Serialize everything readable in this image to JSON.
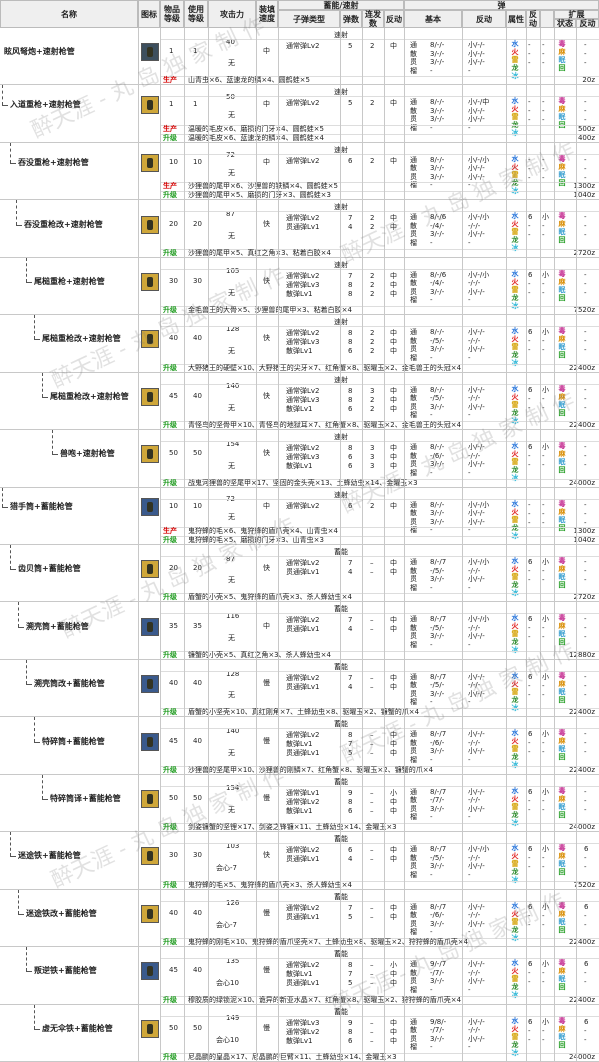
{
  "header": {
    "name": "名称",
    "icon": "图标",
    "item_level": "物品等级",
    "use_level": "使用等级",
    "attack": "攻击力",
    "reload": "装填速度",
    "ammo_group": "蓄能/速射",
    "bullet_type": "子弹类型",
    "ammo_count": "弹数",
    "rapid_count": "连发数",
    "recoil": "反动",
    "shot": "弹",
    "basic": "基本",
    "recoil2": "反动",
    "attr": "属性",
    "recoil3": "反动",
    "ext": "扩展",
    "status": "状态",
    "recoil4": "反动"
  },
  "labels": {
    "produce": "生产",
    "upgrade": "升级",
    "rapid": "速射",
    "charge": "蓄能"
  },
  "basic_types": [
    "通",
    "散",
    "贯",
    "榴"
  ],
  "elements": [
    "水",
    "火",
    "雷",
    "龙",
    "冰"
  ],
  "status_types": [
    "毒",
    "麻",
    "眠",
    "回"
  ],
  "watermarks": [
    "醉天涯 - 丸 岛 独 家 制 作",
    "醉天涯 - 丸 岛 独 家 制 作",
    "醉天涯 - 丸 岛 独 家 制 作",
    "醉天涯 - 丸 岛 独 家 制 作",
    "醉天涯 - 丸 岛 独 家 制 作",
    "醉天涯 - 丸 岛 独 家 制 作",
    "醉天涯 - 丸 岛 独 家 制 作",
    "醉天涯 - 丸 岛 独 家 制 作"
  ],
  "rows": [
    {
      "name": "眩风弩炮+速射枪管",
      "ilv": "1",
      "ulv": "1",
      "atk": "40",
      "aff": "无",
      "reload": "中",
      "mode": "速射",
      "icon": "dark",
      "bullets": [
        {
          "t": "通常弹Lv2",
          "n": "5",
          "r": "2",
          "k": "中"
        }
      ],
      "basic": [
        "8/-/-",
        "3/-/-",
        "3/-/-",
        "-"
      ],
      "rec": [
        "小/-/-",
        "小/-/-",
        "小/-/-",
        "-"
      ],
      "elem": [
        "-",
        "-",
        "-"
      ],
      "elec": [
        "-",
        "-",
        "-"
      ],
      "st": [
        "-",
        "-",
        "-"
      ],
      "lines": [
        {
          "k": "produce",
          "text": "山青虫×6、蓝速龙的鳞×4、圆鹤蛙×5",
          "cost": "20z"
        }
      ]
    },
    {
      "name": "入道重枪+速射枪管",
      "ilv": "1",
      "ulv": "1",
      "atk": "50",
      "aff": "无",
      "reload": "中",
      "mode": "速射",
      "icon": "gold",
      "bullets": [
        {
          "t": "通常弹Lv2",
          "n": "5",
          "r": "2",
          "k": "中"
        }
      ],
      "basic": [
        "8/-/-",
        "3/-/-",
        "3/-/-",
        "-"
      ],
      "rec": [
        "小/-/中",
        "小/-/-",
        "小/-/-",
        "-"
      ],
      "elem": [
        "-",
        "-",
        "-"
      ],
      "elec": [
        "-",
        "-",
        "-"
      ],
      "st": [
        "-",
        "-",
        "-"
      ],
      "lines": [
        {
          "k": "produce",
          "text": "温暖的毛皮×6、磨损的门牙×4、圆鹤蛙×5",
          "cost": "500z"
        },
        {
          "k": "upgrade",
          "text": "温暖的毛皮×6、蓝速龙的鳞×4、圆鹤蛙×4",
          "cost": "400z"
        }
      ]
    },
    {
      "name": "吞没重枪+速射枪管",
      "ilv": "10",
      "ulv": "10",
      "atk": "72",
      "aff": "无",
      "reload": "中",
      "mode": "速射",
      "icon": "gold",
      "bullets": [
        {
          "t": "通常弹Lv2",
          "n": "6",
          "r": "2",
          "k": "中"
        }
      ],
      "basic": [
        "8/-/-",
        "3/-/-",
        "3/-/-",
        "-"
      ],
      "rec": [
        "小/-/小",
        "小/-/-",
        "小/-/-",
        "-"
      ],
      "elem": [
        "-",
        "-",
        "-"
      ],
      "elec": [
        "-",
        "-",
        "-"
      ],
      "st": [
        "-",
        "-",
        "-"
      ],
      "lines": [
        {
          "k": "produce",
          "text": "沙狸兽的尾甲×6、沙狸兽的铁鳞×4、圆鹤蛙×5",
          "cost": "1300z"
        },
        {
          "k": "upgrade",
          "text": "沙狸兽的尾甲×5、磨损的门牙×3、圆鹤蛙×3",
          "cost": "1040z"
        }
      ]
    },
    {
      "name": "吞没重枪改+速射枪管",
      "ilv": "20",
      "ulv": "20",
      "atk": "87",
      "aff": "无",
      "reload": "快",
      "mode": "速射",
      "icon": "gold",
      "bullets": [
        {
          "t": "通常弹Lv2",
          "n": "7",
          "r": "2",
          "k": "中"
        },
        {
          "t": "贯通弹Lv1",
          "n": "4",
          "r": "2",
          "k": "中"
        }
      ],
      "basic": [
        "8/-/6",
        "-/4/-",
        "3/-/-",
        "-"
      ],
      "rec": [
        "小/-/小",
        "-/-/-",
        "小/-/-",
        "-"
      ],
      "elem": [
        "6",
        "-",
        "-"
      ],
      "elec": [
        "小",
        "-",
        "-"
      ],
      "st": [
        "-",
        "-",
        "-"
      ],
      "lines": [
        {
          "k": "upgrade",
          "text": "沙狸兽的尾甲×5、真红之角×3、粘着白胶×4",
          "cost": "2720z"
        }
      ]
    },
    {
      "name": "尾槌重枪+速射枪管",
      "ilv": "30",
      "ulv": "30",
      "atk": "105",
      "aff": "无",
      "reload": "快",
      "mode": "速射",
      "icon": "gold",
      "bullets": [
        {
          "t": "通常弹Lv2",
          "n": "7",
          "r": "2",
          "k": "中"
        },
        {
          "t": "通常弹Lv3",
          "n": "8",
          "r": "2",
          "k": "中"
        },
        {
          "t": "散弹Lv1",
          "n": "8",
          "r": "2",
          "k": "中"
        }
      ],
      "basic": [
        "8/-/6",
        "-/4/-",
        "3/-/-",
        "-"
      ],
      "rec": [
        "小/-/小",
        "-/-/-",
        "小/-/-",
        "-"
      ],
      "elem": [
        "6",
        "-",
        "-"
      ],
      "elec": [
        "小",
        "-",
        "-"
      ],
      "st": [
        "-",
        "-",
        "-"
      ],
      "lines": [
        {
          "k": "upgrade",
          "text": "金毛兽王的大骨×5、沙狸兽的尾甲×3、粘着白胶×4",
          "cost": "7520z"
        }
      ]
    },
    {
      "name": "尾槌重枪改+速射枪管",
      "ilv": "40",
      "ulv": "40",
      "atk": "128",
      "aff": "无",
      "reload": "快",
      "mode": "速射",
      "icon": "gold",
      "bullets": [
        {
          "t": "通常弹Lv2",
          "n": "8",
          "r": "2",
          "k": "中"
        },
        {
          "t": "通常弹Lv3",
          "n": "8",
          "r": "2",
          "k": "中"
        },
        {
          "t": "散弹Lv1",
          "n": "6",
          "r": "2",
          "k": "中"
        }
      ],
      "basic": [
        "8/-/-",
        "-/5/-",
        "3/-/-",
        "-"
      ],
      "rec": [
        "小/-/-",
        "-/-/-",
        "小/-/-",
        "-"
      ],
      "elem": [
        "6",
        "-",
        "-"
      ],
      "elec": [
        "小",
        "-",
        "-"
      ],
      "st": [
        "-",
        "-",
        "-"
      ],
      "lines": [
        {
          "k": "upgrade",
          "text": "大野猪王的硬壁×10、大野猪王的尖牙×7、红角蟹×8、驱曜玉×2、金毛兽王的头冠×4",
          "cost": "22400z"
        }
      ]
    },
    {
      "name": "尾槌重枪改+速射枪管",
      "ilv": "45",
      "ulv": "40",
      "atk": "140",
      "aff": "无",
      "reload": "快",
      "mode": "速射",
      "icon": "gold",
      "bullets": [
        {
          "t": "通常弹Lv2",
          "n": "8",
          "r": "3",
          "k": "中"
        },
        {
          "t": "通常弹Lv3",
          "n": "8",
          "r": "2",
          "k": "中"
        },
        {
          "t": "散弹Lv1",
          "n": "6",
          "r": "2",
          "k": "中"
        }
      ],
      "basic": [
        "8/-/-",
        "-/5/-",
        "3/-/-",
        "-"
      ],
      "rec": [
        "小/-/-",
        "-/-/-",
        "小/-/-",
        "-"
      ],
      "elem": [
        "6",
        "-",
        "-"
      ],
      "elec": [
        "小",
        "-",
        "-"
      ],
      "st": [
        "-",
        "-",
        "-"
      ],
      "lines": [
        {
          "k": "upgrade",
          "text": "青怪鸟的坚骨甲×10、青怪鸟的地狱耳×7、红角蟹×8、驱曜玉×2、金毛兽王的头冠×4",
          "cost": "22400z"
        }
      ]
    },
    {
      "name": "兽咆+速射枪管",
      "ilv": "50",
      "ulv": "50",
      "atk": "154",
      "aff": "无",
      "reload": "快",
      "mode": "速射",
      "icon": "gold",
      "bullets": [
        {
          "t": "通常弹Lv2",
          "n": "8",
          "r": "3",
          "k": "中"
        },
        {
          "t": "通常弹Lv3",
          "n": "6",
          "r": "3",
          "k": "中"
        },
        {
          "t": "散弹Lv1",
          "n": "6",
          "r": "3",
          "k": "中"
        }
      ],
      "basic": [
        "8/-/-",
        "-/6/-",
        "3/-/-",
        "-"
      ],
      "rec": [
        "小/-/-",
        "-/-/-",
        "小/-/-",
        "-"
      ],
      "elem": [
        "6",
        "-",
        "-"
      ],
      "elec": [
        "小",
        "-",
        "-"
      ],
      "st": [
        "-",
        "-",
        "-"
      ],
      "lines": [
        {
          "k": "upgrade",
          "text": "战鬼河狸兽的坚尾甲×17、坚固的金头壳×13、土蜂幼虫×14、金曜玉×3",
          "cost": "24000z"
        }
      ]
    },
    {
      "name": "猎手筒+蓄能枪管",
      "ilv": "10",
      "ulv": "10",
      "atk": "72",
      "aff": "无",
      "reload": "中",
      "mode": "速射",
      "icon": "blue",
      "bullets": [
        {
          "t": "通常弹Lv2",
          "n": "6",
          "r": "2",
          "k": "中"
        }
      ],
      "basic": [
        "8/-/-",
        "3/-/-",
        "3/-/-",
        "-"
      ],
      "rec": [
        "小/-/小",
        "小/-/-",
        "小/-/-",
        "-"
      ],
      "elem": [
        "-",
        "-",
        "-"
      ],
      "elec": [
        "-",
        "-",
        "-"
      ],
      "st": [
        "-",
        "-",
        "-"
      ],
      "lines": [
        {
          "k": "produce",
          "text": "鬼狩蜂的毛×6、鬼狩蜂的盾爪壳×4、山青虫×4",
          "cost": "1300z"
        },
        {
          "k": "upgrade",
          "text": "鬼狩蜂的毛×5、磨损的门牙×3、山青虫×3",
          "cost": "1040z"
        }
      ]
    },
    {
      "name": "齿贝筒+蓄能枪管",
      "ilv": "20",
      "ulv": "20",
      "atk": "87",
      "aff": "无",
      "reload": "快",
      "mode": "蓄能",
      "icon": "gold",
      "bullets": [
        {
          "t": "通常弹Lv2",
          "n": "7",
          "r": "–",
          "k": "中"
        },
        {
          "t": "贯通弹Lv1",
          "n": "4",
          "r": "–",
          "k": "中"
        }
      ],
      "basic": [
        "8/-/7",
        "-/5/-",
        "3/-/-",
        "-"
      ],
      "rec": [
        "小/-/小",
        "-/-/-",
        "小/-/-",
        "-"
      ],
      "elem": [
        "6",
        "-",
        "-"
      ],
      "elec": [
        "小",
        "-",
        "-"
      ],
      "st": [
        "-",
        "-",
        "-"
      ],
      "lines": [
        {
          "k": "upgrade",
          "text": "盾蟹的小壳×5、鬼狩蜂的盾爪壳×3、杀人蜂幼虫×4",
          "cost": "2720z"
        }
      ]
    },
    {
      "name": "溯壳筒+蓄能枪管",
      "ilv": "35",
      "ulv": "35",
      "atk": "116",
      "aff": "无",
      "reload": "中",
      "mode": "蓄能",
      "icon": "blue",
      "bullets": [
        {
          "t": "通常弹Lv2",
          "n": "7",
          "r": "–",
          "k": "中"
        },
        {
          "t": "贯通弹Lv1",
          "n": "4",
          "r": "–",
          "k": "中"
        }
      ],
      "basic": [
        "8/-/7",
        "-/5/-",
        "3/-/-",
        "-"
      ],
      "rec": [
        "小/-/小",
        "-/-/-",
        "小/-/-",
        "-"
      ],
      "elem": [
        "6",
        "-",
        "-"
      ],
      "elec": [
        "小",
        "-",
        "-"
      ],
      "st": [
        "-",
        "-",
        "-"
      ],
      "lines": [
        {
          "k": "upgrade",
          "text": "镰蟹的小壳×5、真红之角×3、杀人蜂幼虫×4",
          "cost": "12880z"
        }
      ]
    },
    {
      "name": "溯壳筒改+蓄能枪管",
      "ilv": "40",
      "ulv": "40",
      "atk": "128",
      "aff": "无",
      "reload": "慢",
      "mode": "蓄能",
      "icon": "blue",
      "bullets": [
        {
          "t": "通常弹Lv2",
          "n": "7",
          "r": "–",
          "k": "中"
        },
        {
          "t": "贯通弹Lv1",
          "n": "4",
          "r": "–",
          "k": "中"
        }
      ],
      "basic": [
        "8/-/7",
        "-/5/-",
        "3/-/-",
        "-"
      ],
      "rec": [
        "小/-/-",
        "-/-/-",
        "小/-/-",
        "-"
      ],
      "elem": [
        "6",
        "-",
        "-"
      ],
      "elec": [
        "小",
        "-",
        "-"
      ],
      "st": [
        "-",
        "-",
        "-"
      ],
      "lines": [
        {
          "k": "upgrade",
          "text": "盾蟹的小坚壳×10、真红刚角×7、土蜂幼虫×8、驱曜玉×2、镰蟹的爪×4",
          "cost": "22400z"
        }
      ]
    },
    {
      "name": "特碎筒+蓄能枪管",
      "ilv": "45",
      "ulv": "40",
      "atk": "140",
      "aff": "无",
      "reload": "慢",
      "mode": "蓄能",
      "icon": "blue",
      "bullets": [
        {
          "t": "通常弹Lv2",
          "n": "8",
          "r": "–",
          "k": "中"
        },
        {
          "t": "散弹Lv1",
          "n": "7",
          "r": "–",
          "k": "中"
        },
        {
          "t": "贯通弹Lv1",
          "n": "5",
          "r": "–",
          "k": "中"
        }
      ],
      "basic": [
        "8/-/7",
        "-/6/-",
        "3/-/-",
        "-"
      ],
      "rec": [
        "小/-/-",
        "-/-/-",
        "小/-/-",
        "-"
      ],
      "elem": [
        "6",
        "-",
        "-"
      ],
      "elec": [
        "小",
        "-",
        "-"
      ],
      "st": [
        "-",
        "-",
        "-"
      ],
      "lines": [
        {
          "k": "upgrade",
          "text": "沙狸兽的坚尾甲×10、沙狸兽的刚鳞×7、红角蟹×8、驱曜玉×2、镰蟹的爪×4",
          "cost": "22400z"
        }
      ]
    },
    {
      "name": "特碎筒译+蓄能枪管",
      "ilv": "50",
      "ulv": "50",
      "atk": "154",
      "aff": "无",
      "reload": "慢",
      "mode": "蓄能",
      "icon": "gold",
      "bullets": [
        {
          "t": "通常弹Lv1",
          "n": "9",
          "r": "–",
          "k": "小"
        },
        {
          "t": "通常弹Lv2",
          "n": "8",
          "r": "–",
          "k": "中"
        },
        {
          "t": "散弹Lv1",
          "n": "6",
          "r": "–",
          "k": "中"
        }
      ],
      "basic": [
        "8/-/7",
        "-/7/-",
        "3/-/-",
        "-"
      ],
      "rec": [
        "小/-/-",
        "-/-/-",
        "小/-/-",
        "-"
      ],
      "elem": [
        "6",
        "-",
        "-"
      ],
      "elec": [
        "小",
        "-",
        "-"
      ],
      "st": [
        "-",
        "-",
        "-"
      ],
      "lines": [
        {
          "k": "upgrade",
          "text": "剑姿镰蟹的坚锂×17、剑姿之锋镰×11、土蜂幼虫×14、金曜玉×3",
          "cost": "24000z"
        }
      ]
    },
    {
      "name": "迷途铁+蓄能枪管",
      "ilv": "30",
      "ulv": "30",
      "atk": "103",
      "aff": "会心-7",
      "reload": "快",
      "mode": "蓄能",
      "icon": "gold",
      "bullets": [
        {
          "t": "通常弹Lv2",
          "n": "6",
          "r": "–",
          "k": "中"
        },
        {
          "t": "贯通弹Lv1",
          "n": "4",
          "r": "–",
          "k": "中"
        }
      ],
      "basic": [
        "8/-/7",
        "-/5/-",
        "3/-/-",
        "-"
      ],
      "rec": [
        "小/-/小",
        "-/-/-",
        "小/-/-",
        "-"
      ],
      "elem": [
        "6",
        "-",
        "-"
      ],
      "elec": [
        "小",
        "-",
        "-"
      ],
      "st": [
        "6",
        "-",
        "-"
      ],
      "lines": [
        {
          "k": "upgrade",
          "text": "鬼狩蜂的毛×5、鬼狩蜂的盾爪壳×3、杀人蜂幼虫×4",
          "cost": "7520z"
        }
      ]
    },
    {
      "name": "迷途铁改+蓄能枪管",
      "ilv": "40",
      "ulv": "40",
      "atk": "126",
      "aff": "会心-7",
      "reload": "慢",
      "mode": "蓄能",
      "icon": "gold",
      "bullets": [
        {
          "t": "通常弹Lv2",
          "n": "7",
          "r": "–",
          "k": "中"
        },
        {
          "t": "贯通弹Lv1",
          "n": "5",
          "r": "–",
          "k": "中"
        }
      ],
      "basic": [
        "8/-/7",
        "-/6/-",
        "3/-/-",
        "-"
      ],
      "rec": [
        "小/-/-",
        "-/-/-",
        "小/-/-",
        "-"
      ],
      "elem": [
        "6",
        "-",
        "-"
      ],
      "elec": [
        "小",
        "-",
        "-"
      ],
      "st": [
        "6",
        "-",
        "-"
      ],
      "lines": [
        {
          "k": "upgrade",
          "text": "鬼狩蜂的刚毛×10、鬼狩蜂的盾爪坚壳×7、土蜂幼虫×8、驱曜玉×2、狩狩蜂的盾爪壳×4",
          "cost": "22400z"
        }
      ]
    },
    {
      "name": "叛逆铁+蓄能枪管",
      "ilv": "45",
      "ulv": "40",
      "atk": "135",
      "aff": "会心10",
      "reload": "慢",
      "mode": "蓄能",
      "icon": "blue",
      "bullets": [
        {
          "t": "通常弹Lv2",
          "n": "8",
          "r": "–",
          "k": "小"
        },
        {
          "t": "散弹Lv1",
          "n": "7",
          "r": "–",
          "k": "中"
        },
        {
          "t": "贯通弹Lv1",
          "n": "5",
          "r": "–",
          "k": "中"
        }
      ],
      "basic": [
        "9/-/7",
        "-/7/-",
        "3/-/-",
        "-"
      ],
      "rec": [
        "小/-/-",
        "-/-/-",
        "小/-/-",
        "-"
      ],
      "elem": [
        "6",
        "-",
        "-"
      ],
      "elec": [
        "小",
        "-",
        "-"
      ],
      "st": [
        "6",
        "-",
        "-"
      ],
      "lines": [
        {
          "k": "upgrade",
          "text": "穆胶质的绿锁泥×10、诡异的新亚水晶×7、红角蟹×8、驱曜玉×2、狩狩蜂的盾爪壳×4",
          "cost": "22400z"
        }
      ]
    },
    {
      "name": "虚无伞铁+蓄能枪管",
      "ilv": "50",
      "ulv": "50",
      "atk": "149",
      "aff": "会心10",
      "reload": "慢",
      "mode": "蓄能",
      "icon": "gold",
      "bullets": [
        {
          "t": "通常弹Lv3",
          "n": "9",
          "r": "–",
          "k": "中"
        },
        {
          "t": "通常弹Lv2",
          "n": "8",
          "r": "–",
          "k": "中"
        },
        {
          "t": "散弹Lv1",
          "n": "6",
          "r": "–",
          "k": "中"
        }
      ],
      "basic": [
        "9/8/-",
        "-/7/-",
        "3/-/-",
        "-"
      ],
      "rec": [
        "小/-/-",
        "-/-/-",
        "小/-/-",
        "-"
      ],
      "elem": [
        "6",
        "-",
        "-"
      ],
      "elec": [
        "小",
        "-",
        "-"
      ],
      "st": [
        "6",
        "-",
        "-"
      ],
      "lines": [
        {
          "k": "upgrade",
          "text": "尼晶鹏的皇晶×17、尼晶鹏的巨臂×11、土蜂幼虫×14、金曜玉×3",
          "cost": "24000z"
        }
      ]
    }
  ]
}
